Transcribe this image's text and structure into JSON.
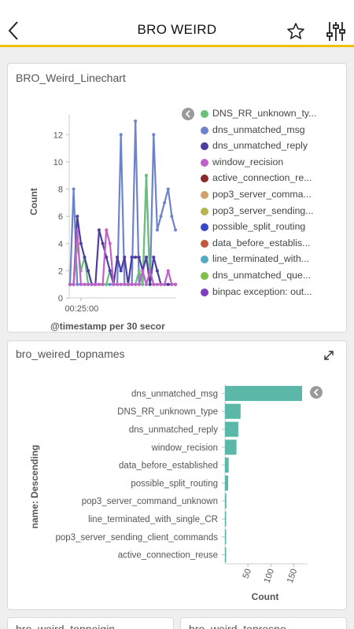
{
  "header": {
    "title": "BRO WEIRD",
    "back_icon": "chevron-left-icon",
    "favorite_icon": "star-icon",
    "filter_icon": "sliders-icon",
    "accent_color": "#f0c000"
  },
  "panels": {
    "linechart_title": "BRO_Weird_Linechart",
    "topnames_title": "bro_weired_topnames",
    "bottom_left_title": "bro_weird_topneigin",
    "bottom_right_title": "bro_weird_toprespo"
  },
  "chart_data": [
    {
      "type": "line",
      "title": "BRO_Weird_Linechart",
      "xlabel": "@timestamp per 30 secor",
      "ylabel": "Count",
      "ylim": [
        0,
        13
      ],
      "y_ticks": [
        "0",
        "2",
        "4",
        "6",
        "8",
        "10",
        "12"
      ],
      "x_tick_labels": [
        "00:25:00"
      ],
      "legend_position": "right",
      "legend": [
        {
          "name": "DNS_RR_unknown_ty...",
          "color": "#6abf7b"
        },
        {
          "name": "dns_unmatched_msg",
          "color": "#6d84cc"
        },
        {
          "name": "dns_unmatched_reply",
          "color": "#4b3da2"
        },
        {
          "name": "window_recision",
          "color": "#c061c9"
        },
        {
          "name": "active_connection_re...",
          "color": "#8b2a2a"
        },
        {
          "name": "pop3_server_comma...",
          "color": "#d2a06a"
        },
        {
          "name": "pop3_server_sending...",
          "color": "#b7b44e"
        },
        {
          "name": "possible_split_routing",
          "color": "#3447c4"
        },
        {
          "name": "data_before_establis...",
          "color": "#c0563a"
        },
        {
          "name": "line_terminated_with...",
          "color": "#55a9c0"
        },
        {
          "name": "dns_unmatched_que...",
          "color": "#7fbf4a"
        },
        {
          "name": "binpac exception: out...",
          "color": "#7d3fbf"
        }
      ],
      "series": [
        {
          "name": "dns_unmatched_msg",
          "color": "#6d84cc",
          "values": [
            1,
            8,
            1,
            1,
            1,
            1,
            1,
            1,
            1,
            1,
            1,
            1,
            1,
            1,
            12,
            1,
            1,
            1,
            13,
            1,
            1,
            9,
            1,
            12,
            5,
            6,
            7,
            8,
            6,
            5
          ]
        },
        {
          "name": "DNS_RR_unknown_type",
          "color": "#6abf7b",
          "values": [
            1,
            1,
            4,
            2,
            3,
            1,
            1,
            1,
            1,
            1,
            1,
            2,
            1,
            1,
            1,
            1,
            1,
            1,
            1,
            2,
            1,
            9,
            1,
            1,
            1,
            1,
            1,
            1,
            1,
            1
          ]
        },
        {
          "name": "dns_unmatched_reply",
          "color": "#4b3da2",
          "values": [
            1,
            1,
            6,
            4,
            3,
            2,
            1,
            1,
            5,
            4,
            3,
            2,
            1,
            3,
            2,
            3,
            1,
            3,
            3,
            3,
            2,
            3,
            1,
            3,
            2,
            1,
            1,
            1,
            1,
            1
          ]
        },
        {
          "name": "window_recision",
          "color": "#c061c9",
          "values": [
            1,
            1,
            5,
            1,
            1,
            1,
            1,
            1,
            1,
            1,
            5,
            4,
            1,
            1,
            1,
            1,
            1,
            1,
            1,
            1,
            2,
            1,
            2,
            1,
            1,
            1,
            1,
            2,
            1,
            1
          ]
        }
      ]
    },
    {
      "type": "bar",
      "orientation": "horizontal",
      "title": "bro_weired_topnames",
      "xlabel": "Count",
      "ylabel": "name: Descending",
      "xlim": [
        0,
        180
      ],
      "x_ticks": [
        "50",
        "100",
        "150"
      ],
      "bar_color": "#5bb8a8",
      "categories": [
        "dns_unmatched_msg",
        "DNS_RR_unknown_type",
        "dns_unmatched_reply",
        "window_recision",
        "data_before_established",
        "possible_split_routing",
        "pop3_server_command_unknown",
        "line_terminated_with_single_CR",
        "pop3_server_sending_client_commands",
        "active_connection_reuse"
      ],
      "values": [
        168,
        34,
        29,
        25,
        8,
        7,
        3,
        2,
        1,
        1
      ]
    }
  ]
}
